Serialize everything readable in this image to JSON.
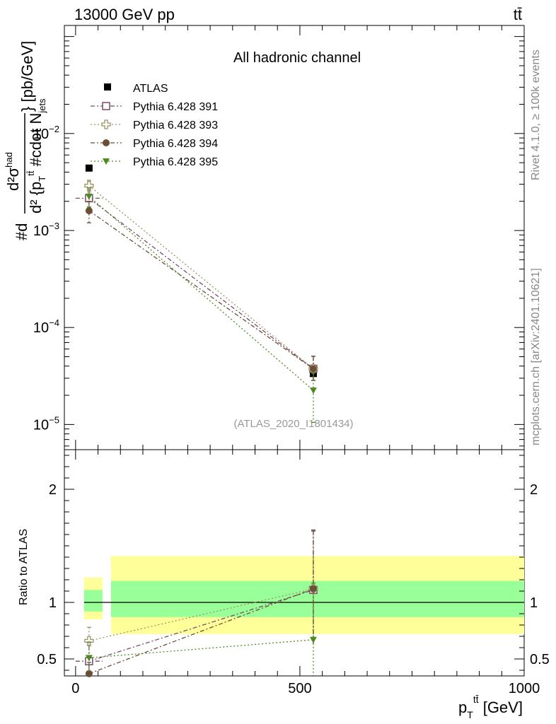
{
  "header": {
    "energy_label": "13000 GeV pp",
    "process_label": "tt̄"
  },
  "side_labels": {
    "rivet": "Rivet 4.1.0, ≥ 100k events",
    "mcplots": "mcplots.cern.ch [arXiv:2401.10621]"
  },
  "chart_data": [
    {
      "type": "scatter",
      "title": "All hadronic channel",
      "analysis_label": "(ATLAS_2020_I1801434)",
      "ylabel_parts": {
        "prefix": "#d",
        "num": "d²σ",
        "num_sup": "had",
        "den": "d² {p",
        "den_sub": "T",
        "den_sup": "tt̄",
        "den_tail": " #cdot N",
        "den_tail_sub": "jets",
        "units": "} [pb/GeV]"
      },
      "yscale": "log",
      "ylim": [
        5.5e-06,
        0.13
      ],
      "xlim": [
        -25,
        1000
      ],
      "y_ticks": [
        {
          "value": 1e-05,
          "mantissa": "10",
          "exp": "−5"
        },
        {
          "value": 0.0001,
          "mantissa": "10",
          "exp": "−4"
        },
        {
          "value": 0.001,
          "mantissa": "10",
          "exp": "−3"
        },
        {
          "value": 0.01,
          "mantissa": "10",
          "exp": "−2"
        }
      ],
      "legend_position": "top-left",
      "series": [
        {
          "name": "ATLAS",
          "marker": "square-filled",
          "color": "#000000",
          "style": "none",
          "x": [
            30,
            530
          ],
          "y": [
            0.0044,
            3.35e-05
          ],
          "xerr": [
            0,
            0
          ],
          "yerr_low": [
            0,
            0
          ],
          "yerr_high": [
            0,
            0
          ]
        },
        {
          "name": "Pythia 6.428 391",
          "marker": "square-open",
          "color": "#7b4a6a",
          "style": "dash-dot",
          "x": [
            30,
            530
          ],
          "y": [
            0.00215,
            3.75e-05
          ],
          "xerr": [
            30,
            0
          ],
          "yerr_low": [
            0.00045,
            9e-06
          ],
          "yerr_high": [
            0.00045,
            1.3e-05
          ]
        },
        {
          "name": "Pythia 6.428 393",
          "marker": "cross-open",
          "color": "#9c9363",
          "style": "dot",
          "x": [
            30,
            530
          ],
          "y": [
            0.0029,
            3.75e-05
          ],
          "xerr": [
            0,
            0
          ],
          "yerr_low": [
            0.0004,
            9e-06
          ],
          "yerr_high": [
            0.0004,
            1.3e-05
          ]
        },
        {
          "name": "Pythia 6.428 394",
          "marker": "circle-filled",
          "color": "#6b4e35",
          "style": "dash-dot",
          "x": [
            30,
            530
          ],
          "y": [
            0.0016,
            3.75e-05
          ],
          "xerr": [
            0,
            0
          ],
          "yerr_low": [
            0.0004,
            9e-06
          ],
          "yerr_high": [
            0.0004,
            1.3e-05
          ]
        },
        {
          "name": "Pythia 6.428 395",
          "marker": "triangle-down-filled",
          "color": "#4e8a22",
          "style": "dot",
          "x": [
            30,
            530
          ],
          "y": [
            0.00225,
            2.25e-05
          ],
          "xerr": [
            0,
            0
          ],
          "yerr_low": [
            0.0005,
            1.2e-05
          ],
          "yerr_high": [
            0.0005,
            1.2e-05
          ]
        }
      ]
    },
    {
      "type": "scatter",
      "ylabel": "Ratio to ATLAS",
      "xlabel_parts": {
        "main": "p",
        "sub": "T",
        "sup": "tt̄",
        "units": " [GeV]"
      },
      "ylim": [
        0.35,
        2.35
      ],
      "xlim": [
        -25,
        1000
      ],
      "x_ticks": [
        0,
        500,
        1000
      ],
      "y_ticks": [
        0.5,
        1,
        2
      ],
      "bands": [
        {
          "x0": 0,
          "x1": 60,
          "outer": [
            0.85,
            1.22
          ],
          "inner": [
            0.92,
            1.11
          ]
        },
        {
          "x0": 60,
          "x1": 1000,
          "outer": [
            0.72,
            1.41
          ],
          "inner": [
            0.87,
            1.19
          ]
        }
      ],
      "series": [
        {
          "name": "Pythia 6.428 391",
          "x": [
            30,
            530
          ],
          "y": [
            0.48,
            1.11
          ],
          "yerr_low": [
            0.14,
            0.5
          ],
          "yerr_high": [
            0.14,
            0.52
          ],
          "xerr": [
            30,
            0
          ]
        },
        {
          "name": "Pythia 6.428 393",
          "x": [
            30,
            530
          ],
          "y": [
            0.66,
            1.12
          ],
          "yerr_low": [
            0.12,
            0.5
          ],
          "yerr_high": [
            0.12,
            0.52
          ],
          "xerr": [
            0,
            0
          ]
        },
        {
          "name": "Pythia 6.428 394",
          "x": [
            30,
            530
          ],
          "y": [
            0.37,
            1.12
          ],
          "yerr_low": [
            0.1,
            0.5
          ],
          "yerr_high": [
            0.1,
            0.52
          ],
          "xerr": [
            0,
            0
          ]
        },
        {
          "name": "Pythia 6.428 395",
          "x": [
            30,
            530
          ],
          "y": [
            0.51,
            0.67
          ],
          "yerr_low": [
            0.14,
            0.5
          ],
          "yerr_high": [
            0.14,
            0.5
          ],
          "xerr": [
            0,
            0
          ]
        }
      ]
    }
  ]
}
